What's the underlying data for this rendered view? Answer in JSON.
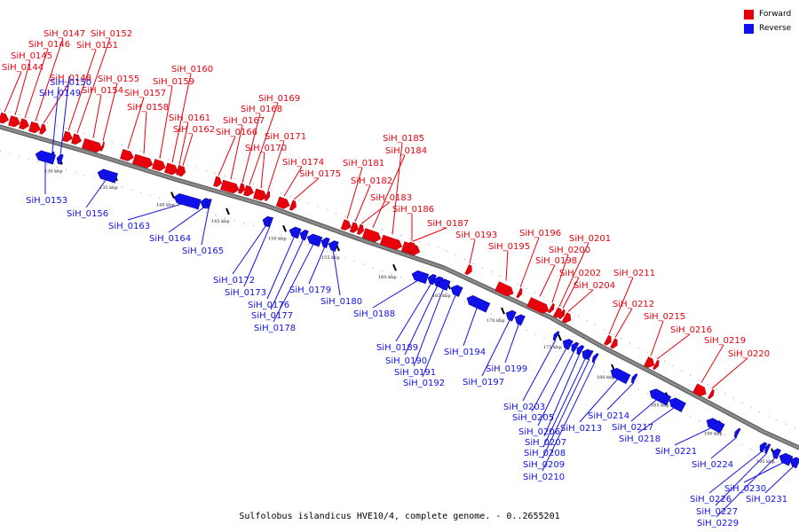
{
  "caption": "Sulfolobus islandicus HVE10/4, complete genome. - 0..2655201",
  "legend": [
    {
      "label": "Forward",
      "color": "#e8000b"
    },
    {
      "label": "Reverse",
      "color": "#1010e8"
    }
  ],
  "colors": {
    "forward": "#e8000b",
    "reverse": "#1010e8",
    "axis": "#8a8a8a"
  },
  "ticks": [
    "130 kbp",
    "135 kbp",
    "140 kbp",
    "145 kbp",
    "150 kbp",
    "155 kbp",
    "160 kbp",
    "165 kbp",
    "170 kbp",
    "175 kbp",
    "180 kbp",
    "185 kbp",
    "190 kbp",
    "195 kbp"
  ],
  "forward_genes": [
    "SiH_0144",
    "SiH_0145",
    "SiH_0146",
    "SiH_0147",
    "SiH_0148",
    "SiH_0151",
    "SiH_0152",
    "SiH_0154",
    "SiH_0155",
    "SiH_0157",
    "SiH_0158",
    "SiH_0159",
    "SiH_0160",
    "SiH_0161",
    "SiH_0162",
    "SiH_0166",
    "SiH_0167",
    "SiH_0168",
    "SiH_0169",
    "SiH_0170",
    "SiH_0171",
    "SiH_0174",
    "SiH_0175",
    "SiH_0181",
    "SiH_0182",
    "SiH_0183",
    "SiH_0184",
    "SiH_0185",
    "SiH_0186",
    "SiH_0187",
    "SiH_0193",
    "SiH_0195",
    "SiH_0196",
    "SiH_0198",
    "SiH_0200",
    "SiH_0201",
    "SiH_0202",
    "SiH_0204",
    "SiH_0211",
    "SiH_0212",
    "SiH_0215",
    "SiH_0216",
    "SiH_0219",
    "SiH_0220"
  ],
  "reverse_genes": [
    "SiH_0149",
    "SiH_0150",
    "SiH_0153",
    "SiH_0156",
    "SiH_0163",
    "SiH_0164",
    "SiH_0165",
    "SiH_0172",
    "SiH_0173",
    "SiH_0176",
    "SiH_0177",
    "SiH_0178",
    "SiH_0179",
    "SiH_0180",
    "SiH_0188",
    "SiH_0189",
    "SiH_0190",
    "SiH_0191",
    "SiH_0192",
    "SiH_0194",
    "SiH_0197",
    "SiH_0199",
    "SiH_0203",
    "SiH_0205",
    "SiH_0206",
    "SiH_0207",
    "SiH_0208",
    "SiH_0209",
    "SiH_0210",
    "SiH_0213",
    "SiH_0214",
    "SiH_0217",
    "SiH_0218",
    "SiH_0221",
    "SiH_0224",
    "SiH_0226",
    "SiH_0227",
    "SiH_0229",
    "SiH_0230",
    "SiH_0231"
  ]
}
